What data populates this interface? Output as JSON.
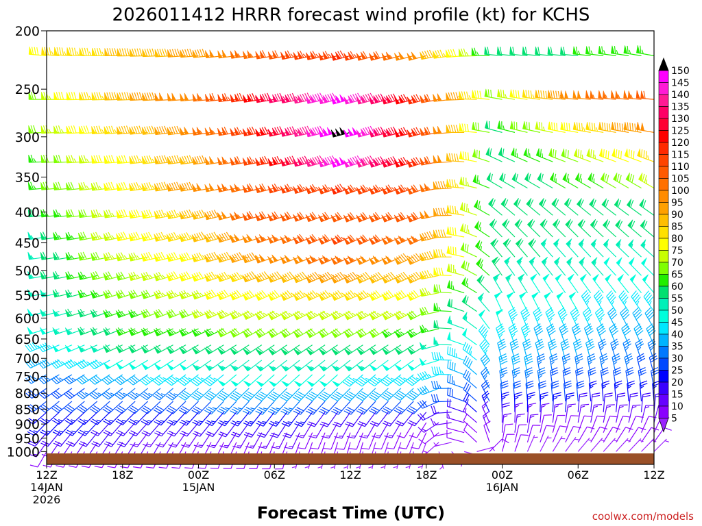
{
  "chart_data": {
    "type": "wind-barb-time-height",
    "title": "2026011412 HRRR forecast wind profile (kt) for KCHS",
    "xlabel": "Forecast Time (UTC)",
    "ylabel": "",
    "credit": "coolwx.com/models",
    "y_axis": {
      "scale": "log",
      "reversed": true,
      "range": [
        200,
        1050
      ],
      "ticks": [
        "200",
        "250",
        "300",
        "350",
        "400",
        "450",
        "500",
        "550",
        "600",
        "650",
        "700",
        "750",
        "800",
        "850",
        "900",
        "950",
        "1000"
      ]
    },
    "x_axis": {
      "range_hours": [
        0,
        48
      ],
      "ticks": [
        {
          "hour": 0,
          "line1": "12Z",
          "line2": "14JAN",
          "line3": "2026"
        },
        {
          "hour": 6,
          "line1": "18Z",
          "line2": "",
          "line3": ""
        },
        {
          "hour": 12,
          "line1": "00Z",
          "line2": "15JAN",
          "line3": ""
        },
        {
          "hour": 18,
          "line1": "06Z",
          "line2": "",
          "line3": ""
        },
        {
          "hour": 24,
          "line1": "12Z",
          "line2": "",
          "line3": ""
        },
        {
          "hour": 30,
          "line1": "18Z",
          "line2": "",
          "line3": ""
        },
        {
          "hour": 36,
          "line1": "00Z",
          "line2": "16JAN",
          "line3": ""
        },
        {
          "hour": 42,
          "line1": "06Z",
          "line2": "",
          "line3": ""
        },
        {
          "hour": 48,
          "line1": "12Z",
          "line2": "",
          "line3": ""
        }
      ]
    },
    "colorbar": {
      "labels": [
        "150",
        "145",
        "140",
        "135",
        "130",
        "125",
        "120",
        "115",
        "110",
        "105",
        "100",
        "95",
        "90",
        "85",
        "80",
        "75",
        "70",
        "65",
        "60",
        "55",
        "50",
        "45",
        "40",
        "35",
        "30",
        "25",
        "20",
        "15",
        "10",
        "5"
      ],
      "colors": [
        "#ff00ff",
        "#ff1ad6",
        "#ff1a94",
        "#ff0066",
        "#ff0033",
        "#ff0000",
        "#ff2a00",
        "#ff4400",
        "#ff5a00",
        "#ff7000",
        "#ff8c00",
        "#ffa000",
        "#ffbe00",
        "#ffe000",
        "#ffff00",
        "#c8ff00",
        "#7fff00",
        "#22ee00",
        "#00e070",
        "#00f0b8",
        "#00ffdc",
        "#00e8ff",
        "#00b4ff",
        "#0078ff",
        "#0048ff",
        "#0000ff",
        "#3a00ff",
        "#6600ff",
        "#8a00ff",
        "#9a20ff"
      ],
      "max_color": "#000000"
    },
    "ground_color": "#9a5028",
    "wind_levels": [
      {
        "p": 220,
        "pts": [
          [
            0,
            275,
            82
          ],
          [
            6,
            270,
            88
          ],
          [
            12,
            265,
            94
          ],
          [
            18,
            260,
            110
          ],
          [
            24,
            255,
            118
          ],
          [
            30,
            255,
            98
          ],
          [
            36,
            275,
            60
          ],
          [
            42,
            275,
            62
          ],
          [
            48,
            280,
            66
          ]
        ]
      },
      {
        "p": 260,
        "pts": [
          [
            0,
            270,
            72
          ],
          [
            6,
            268,
            90
          ],
          [
            12,
            265,
            102
          ],
          [
            18,
            260,
            130
          ],
          [
            24,
            255,
            150
          ],
          [
            30,
            255,
            118
          ],
          [
            36,
            280,
            70
          ],
          [
            42,
            275,
            100
          ],
          [
            48,
            275,
            108
          ]
        ]
      },
      {
        "p": 295,
        "pts": [
          [
            0,
            268,
            70
          ],
          [
            6,
            265,
            86
          ],
          [
            12,
            262,
            98
          ],
          [
            18,
            258,
            125
          ],
          [
            24,
            255,
            155
          ],
          [
            30,
            255,
            118
          ],
          [
            36,
            285,
            62
          ],
          [
            42,
            280,
            82
          ],
          [
            48,
            280,
            98
          ]
        ]
      },
      {
        "p": 330,
        "pts": [
          [
            0,
            268,
            66
          ],
          [
            6,
            265,
            80
          ],
          [
            12,
            262,
            92
          ],
          [
            18,
            258,
            118
          ],
          [
            24,
            252,
            150
          ],
          [
            30,
            252,
            120
          ],
          [
            36,
            295,
            58
          ],
          [
            42,
            290,
            72
          ],
          [
            48,
            290,
            84
          ]
        ]
      },
      {
        "p": 365,
        "pts": [
          [
            0,
            265,
            66
          ],
          [
            6,
            262,
            78
          ],
          [
            12,
            260,
            96
          ],
          [
            18,
            255,
            112
          ],
          [
            24,
            250,
            118
          ],
          [
            30,
            250,
            112
          ],
          [
            36,
            300,
            58
          ],
          [
            42,
            300,
            64
          ],
          [
            48,
            300,
            74
          ]
        ]
      },
      {
        "p": 405,
        "pts": [
          [
            0,
            265,
            60
          ],
          [
            6,
            262,
            76
          ],
          [
            12,
            258,
            88
          ],
          [
            18,
            252,
            112
          ],
          [
            24,
            248,
            112
          ],
          [
            30,
            248,
            110
          ],
          [
            36,
            310,
            58
          ],
          [
            42,
            310,
            60
          ],
          [
            48,
            305,
            62
          ]
        ]
      },
      {
        "p": 440,
        "pts": [
          [
            0,
            262,
            56
          ],
          [
            6,
            258,
            76
          ],
          [
            12,
            255,
            86
          ],
          [
            18,
            250,
            104
          ],
          [
            24,
            245,
            114
          ],
          [
            30,
            245,
            104
          ],
          [
            36,
            315,
            58
          ],
          [
            42,
            315,
            60
          ],
          [
            48,
            310,
            60
          ]
        ]
      },
      {
        "p": 475,
        "pts": [
          [
            0,
            262,
            56
          ],
          [
            6,
            258,
            74
          ],
          [
            12,
            255,
            82
          ],
          [
            18,
            250,
            100
          ],
          [
            24,
            245,
            104
          ],
          [
            30,
            245,
            96
          ],
          [
            36,
            320,
            60
          ],
          [
            42,
            318,
            56
          ],
          [
            48,
            312,
            54
          ]
        ]
      },
      {
        "p": 510,
        "pts": [
          [
            0,
            260,
            55
          ],
          [
            6,
            255,
            70
          ],
          [
            12,
            252,
            80
          ],
          [
            18,
            248,
            90
          ],
          [
            24,
            245,
            94
          ],
          [
            30,
            245,
            88
          ],
          [
            36,
            325,
            58
          ],
          [
            42,
            320,
            54
          ],
          [
            48,
            315,
            50
          ]
        ]
      },
      {
        "p": 545,
        "pts": [
          [
            0,
            258,
            55
          ],
          [
            6,
            252,
            68
          ],
          [
            12,
            250,
            76
          ],
          [
            18,
            245,
            82
          ],
          [
            24,
            245,
            84
          ],
          [
            30,
            245,
            80
          ],
          [
            36,
            330,
            54
          ],
          [
            42,
            325,
            50
          ],
          [
            48,
            320,
            48
          ]
        ]
      },
      {
        "p": 585,
        "pts": [
          [
            0,
            255,
            52
          ],
          [
            6,
            250,
            64
          ],
          [
            12,
            248,
            72
          ],
          [
            18,
            242,
            76
          ],
          [
            24,
            242,
            76
          ],
          [
            30,
            242,
            72
          ],
          [
            36,
            335,
            52
          ],
          [
            42,
            330,
            48
          ],
          [
            48,
            325,
            44
          ]
        ]
      },
      {
        "p": 625,
        "pts": [
          [
            0,
            252,
            50
          ],
          [
            6,
            248,
            62
          ],
          [
            12,
            245,
            66
          ],
          [
            18,
            240,
            70
          ],
          [
            24,
            240,
            70
          ],
          [
            30,
            240,
            66
          ],
          [
            36,
            340,
            48
          ],
          [
            42,
            335,
            44
          ],
          [
            48,
            330,
            40
          ]
        ]
      },
      {
        "p": 665,
        "pts": [
          [
            0,
            248,
            45
          ],
          [
            6,
            245,
            58
          ],
          [
            12,
            240,
            60
          ],
          [
            18,
            236,
            62
          ],
          [
            24,
            236,
            62
          ],
          [
            30,
            238,
            58
          ],
          [
            36,
            340,
            44
          ],
          [
            42,
            340,
            40
          ],
          [
            48,
            335,
            38
          ]
        ]
      },
      {
        "p": 705,
        "pts": [
          [
            0,
            244,
            40
          ],
          [
            6,
            240,
            48
          ],
          [
            12,
            236,
            52
          ],
          [
            18,
            232,
            56
          ],
          [
            24,
            232,
            54
          ],
          [
            30,
            235,
            50
          ],
          [
            36,
            345,
            42
          ],
          [
            42,
            345,
            38
          ],
          [
            48,
            340,
            36
          ]
        ]
      },
      {
        "p": 745,
        "pts": [
          [
            0,
            240,
            34
          ],
          [
            6,
            236,
            40
          ],
          [
            12,
            232,
            46
          ],
          [
            18,
            228,
            50
          ],
          [
            24,
            228,
            48
          ],
          [
            30,
            232,
            44
          ],
          [
            36,
            350,
            40
          ],
          [
            42,
            350,
            34
          ],
          [
            48,
            345,
            32
          ]
        ]
      },
      {
        "p": 785,
        "pts": [
          [
            0,
            236,
            30
          ],
          [
            6,
            232,
            34
          ],
          [
            12,
            228,
            38
          ],
          [
            18,
            225,
            42
          ],
          [
            24,
            225,
            40
          ],
          [
            30,
            228,
            38
          ],
          [
            36,
            352,
            36
          ],
          [
            42,
            352,
            30
          ],
          [
            48,
            350,
            28
          ]
        ]
      },
      {
        "p": 825,
        "pts": [
          [
            0,
            232,
            28
          ],
          [
            6,
            228,
            30
          ],
          [
            12,
            225,
            32
          ],
          [
            18,
            222,
            34
          ],
          [
            24,
            222,
            30
          ],
          [
            30,
            225,
            28
          ],
          [
            36,
            355,
            32
          ],
          [
            42,
            355,
            28
          ],
          [
            48,
            355,
            24
          ]
        ]
      },
      {
        "p": 860,
        "pts": [
          [
            0,
            228,
            26
          ],
          [
            6,
            225,
            26
          ],
          [
            12,
            222,
            26
          ],
          [
            18,
            218,
            26
          ],
          [
            24,
            215,
            20
          ],
          [
            30,
            220,
            18
          ],
          [
            36,
            358,
            26
          ],
          [
            42,
            5,
            22
          ],
          [
            48,
            5,
            20
          ]
        ]
      },
      {
        "p": 895,
        "pts": [
          [
            0,
            224,
            24
          ],
          [
            6,
            222,
            22
          ],
          [
            12,
            220,
            22
          ],
          [
            18,
            214,
            20
          ],
          [
            24,
            208,
            14
          ],
          [
            30,
            212,
            12
          ],
          [
            36,
            0,
            18
          ],
          [
            42,
            10,
            14
          ],
          [
            48,
            15,
            14
          ]
        ]
      },
      {
        "p": 930,
        "pts": [
          [
            0,
            220,
            20
          ],
          [
            6,
            218,
            18
          ],
          [
            12,
            214,
            16
          ],
          [
            18,
            208,
            14
          ],
          [
            24,
            200,
            10
          ],
          [
            30,
            205,
            8
          ],
          [
            36,
            5,
            14
          ],
          [
            42,
            20,
            10
          ],
          [
            48,
            25,
            10
          ]
        ]
      },
      {
        "p": 965,
        "pts": [
          [
            0,
            215,
            16
          ],
          [
            6,
            212,
            14
          ],
          [
            12,
            208,
            12
          ],
          [
            18,
            202,
            10
          ],
          [
            24,
            195,
            8
          ],
          [
            30,
            200,
            6
          ],
          [
            36,
            10,
            10
          ],
          [
            42,
            30,
            8
          ],
          [
            48,
            35,
            8
          ]
        ]
      },
      {
        "p": 1000,
        "pts": [
          [
            0,
            210,
            12
          ],
          [
            6,
            205,
            10
          ],
          [
            12,
            200,
            10
          ],
          [
            18,
            195,
            8
          ],
          [
            24,
            190,
            6
          ],
          [
            30,
            195,
            5
          ],
          [
            36,
            15,
            8
          ],
          [
            42,
            40,
            6
          ],
          [
            48,
            45,
            6
          ]
        ]
      }
    ]
  }
}
